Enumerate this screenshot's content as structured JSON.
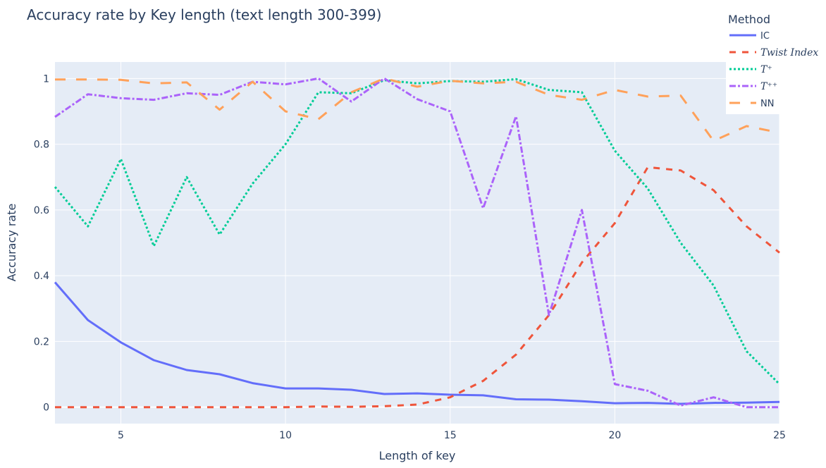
{
  "chart_data": {
    "type": "line",
    "title": "Accuracy rate by Key length (text length 300-399)",
    "xlabel": "Length of key",
    "ylabel": "Accuracy rate",
    "xlim": [
      3,
      25
    ],
    "ylim": [
      -0.05,
      1.05
    ],
    "xticks": [
      5,
      10,
      15,
      20,
      25
    ],
    "yticks": [
      0,
      0.2,
      0.4,
      0.6,
      0.8,
      1
    ],
    "ytick_labels": [
      "0",
      "0.2",
      "0.4",
      "0.6",
      "0.8",
      "1"
    ],
    "grid": true,
    "legend": {
      "title": "Method",
      "position": "top-right"
    },
    "x": [
      3,
      4,
      5,
      6,
      7,
      8,
      9,
      10,
      11,
      12,
      13,
      14,
      15,
      16,
      17,
      18,
      19,
      20,
      21,
      22,
      23,
      24,
      25
    ],
    "series": [
      {
        "name": "IC",
        "color": "#636efa",
        "dash": "solid",
        "values": [
          0.38,
          0.265,
          0.197,
          0.143,
          0.113,
          0.1,
          0.073,
          0.057,
          0.057,
          0.053,
          0.04,
          0.042,
          0.038,
          0.036,
          0.024,
          0.023,
          0.018,
          0.012,
          0.013,
          0.01,
          0.013,
          0.014,
          0.016
        ]
      },
      {
        "name": "Twist Index",
        "color": "#ef553b",
        "dash": "dash",
        "values": [
          0,
          0,
          0,
          0,
          0,
          0,
          0,
          0,
          0.002,
          0.001,
          0.003,
          0.008,
          0.03,
          0.08,
          0.16,
          0.28,
          0.44,
          0.56,
          0.73,
          0.72,
          0.66,
          0.55,
          0.47
        ]
      },
      {
        "name": "T⁺",
        "color": "#00cc96",
        "dash": "dot",
        "values": [
          0.67,
          0.55,
          0.755,
          0.49,
          0.7,
          0.525,
          0.68,
          0.8,
          0.958,
          0.955,
          0.995,
          0.985,
          0.992,
          0.99,
          0.998,
          0.965,
          0.958,
          0.78,
          0.665,
          0.5,
          0.37,
          0.17,
          0.07
        ]
      },
      {
        "name": "T⁺⁺",
        "color": "#ab63fa",
        "dash": "dashdot",
        "values": [
          0.883,
          0.952,
          0.94,
          0.935,
          0.955,
          0.95,
          0.99,
          0.982,
          1.0,
          0.93,
          1.0,
          0.937,
          0.9,
          0.605,
          0.885,
          0.28,
          0.6,
          0.07,
          0.05,
          0.005,
          0.03,
          0,
          0
        ]
      },
      {
        "name": "NN",
        "color": "#ffa15a",
        "dash": "longdash",
        "values": [
          0.997,
          0.997,
          0.996,
          0.985,
          0.988,
          0.905,
          0.99,
          0.9,
          0.876,
          0.958,
          1.0,
          0.975,
          0.993,
          0.985,
          0.99,
          0.95,
          0.935,
          0.965,
          0.945,
          0.948,
          0.81,
          0.855,
          0.835
        ]
      }
    ]
  }
}
